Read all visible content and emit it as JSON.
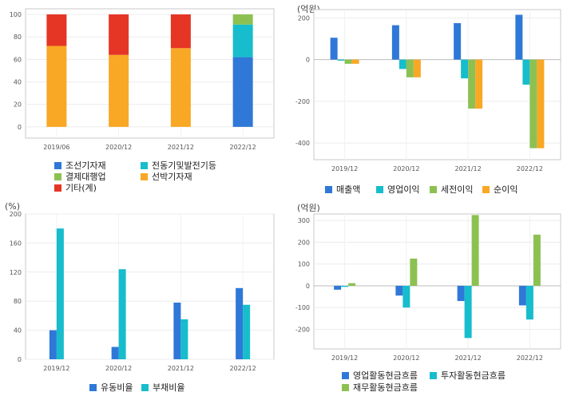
{
  "chart_data": [
    {
      "type": "bar",
      "stacked": true,
      "categories": [
        "2019/06",
        "2020/12",
        "2021/12",
        "2022/12"
      ],
      "ylim": [
        -10,
        105
      ],
      "yticks": [
        0,
        20,
        40,
        60,
        80,
        100
      ],
      "grid": true,
      "legend_position": "bottom",
      "series": [
        {
          "name": "조선기자재",
          "color": "#2f78d8",
          "values": [
            0,
            0,
            0,
            62
          ]
        },
        {
          "name": "전동기및발전기등",
          "color": "#17bdcc",
          "values": [
            0,
            0,
            0,
            29
          ]
        },
        {
          "name": "결제대행업",
          "color": "#8cc152",
          "values": [
            0,
            0,
            0,
            9
          ]
        },
        {
          "name": "선박기자재",
          "color": "#f9a825",
          "values": [
            72,
            64,
            70,
            0
          ]
        },
        {
          "name": "기타(계)",
          "color": "#e53525",
          "values": [
            28,
            36,
            30,
            0
          ]
        }
      ]
    },
    {
      "type": "bar",
      "unit": "(억원)",
      "categories": [
        "2019/12",
        "2020/12",
        "2021/12",
        "2022/12"
      ],
      "ylim": [
        -480,
        240
      ],
      "yticks": [
        -400,
        -200,
        0,
        200
      ],
      "grid": true,
      "legend_position": "bottom",
      "series": [
        {
          "name": "매출액",
          "color": "#2f78d8",
          "values": [
            105,
            165,
            175,
            215
          ]
        },
        {
          "name": "영업이익",
          "color": "#17bdcc",
          "values": [
            -5,
            -45,
            -90,
            -120
          ]
        },
        {
          "name": "세전이익",
          "color": "#8cc152",
          "values": [
            -20,
            -85,
            -235,
            -425
          ]
        },
        {
          "name": "순이익",
          "color": "#f9a825",
          "values": [
            -20,
            -85,
            -235,
            -425
          ]
        }
      ]
    },
    {
      "type": "bar",
      "unit": "(%)",
      "categories": [
        "2019/12",
        "2020/12",
        "2021/12",
        "2022/12"
      ],
      "ylim": [
        0,
        200
      ],
      "yticks": [
        0,
        40,
        80,
        120,
        160,
        200
      ],
      "grid": true,
      "legend_position": "bottom",
      "series": [
        {
          "name": "유동비율",
          "color": "#2f78d8",
          "values": [
            40,
            17,
            78,
            98
          ]
        },
        {
          "name": "부채비율",
          "color": "#17bdcc",
          "values": [
            180,
            124,
            55,
            75
          ]
        }
      ]
    },
    {
      "type": "bar",
      "unit": "(억원)",
      "categories": [
        "2019/12",
        "2020/12",
        "2021/12",
        "2022/12"
      ],
      "ylim": [
        -290,
        330
      ],
      "yticks": [
        -200,
        -100,
        0,
        100,
        200,
        300
      ],
      "grid": true,
      "legend_position": "bottom",
      "series": [
        {
          "name": "영업활동현금흐름",
          "color": "#2f78d8",
          "values": [
            -18,
            -45,
            -70,
            -90
          ]
        },
        {
          "name": "투자활동현금흐름",
          "color": "#17bdcc",
          "values": [
            -5,
            -100,
            -240,
            -155
          ]
        },
        {
          "name": "재무활동현금흐름",
          "color": "#8cc152",
          "values": [
            12,
            125,
            325,
            235
          ]
        }
      ]
    }
  ]
}
